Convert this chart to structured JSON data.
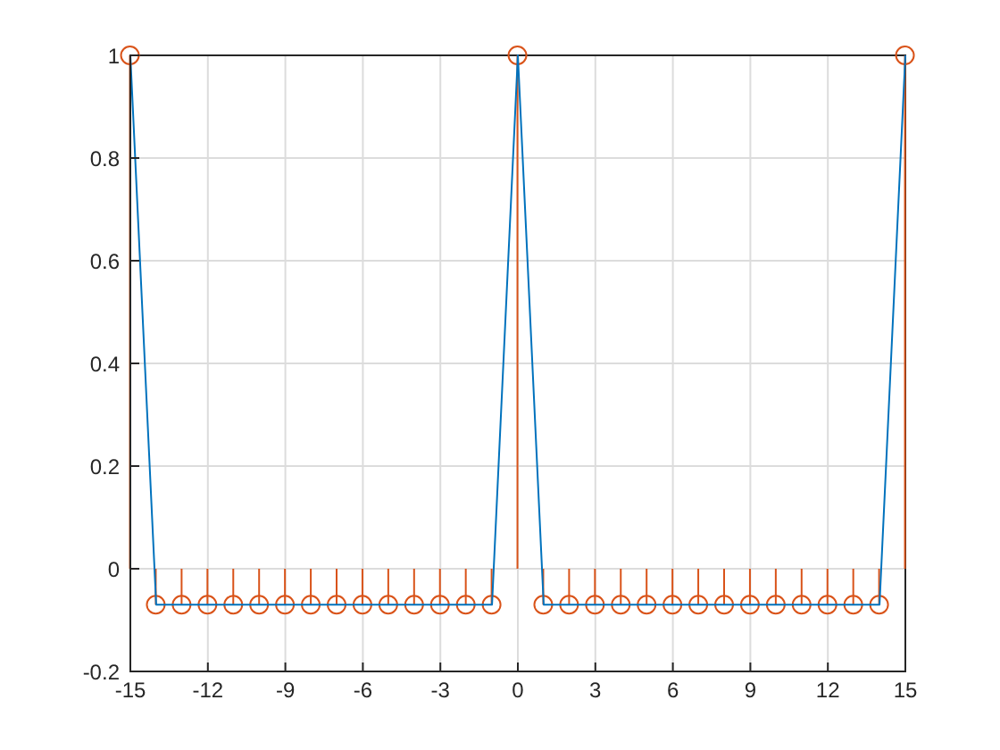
{
  "chart_data": {
    "type": "line",
    "x": [
      -15,
      -14,
      -13,
      -12,
      -11,
      -10,
      -9,
      -8,
      -7,
      -6,
      -5,
      -4,
      -3,
      -2,
      -1,
      0,
      1,
      2,
      3,
      4,
      5,
      6,
      7,
      8,
      9,
      10,
      11,
      12,
      13,
      14,
      15
    ],
    "xlim": [
      -15,
      15
    ],
    "xticks": [
      -15,
      -12,
      -9,
      -6,
      -3,
      0,
      3,
      6,
      9,
      12,
      15
    ],
    "ylim": [
      -0.2,
      1
    ],
    "yticks": [
      -0.2,
      0,
      0.2,
      0.4,
      0.6,
      0.8,
      1
    ],
    "grid": true,
    "series": [
      {
        "color": "#0072bd",
        "marker": "none",
        "values": [
          1,
          -0.07,
          -0.07,
          -0.07,
          -0.07,
          -0.07,
          -0.07,
          -0.07,
          -0.07,
          -0.07,
          -0.07,
          -0.07,
          -0.07,
          -0.07,
          -0.07,
          1,
          -0.07,
          -0.07,
          -0.07,
          -0.07,
          -0.07,
          -0.07,
          -0.07,
          -0.07,
          -0.07,
          -0.07,
          -0.07,
          -0.07,
          -0.07,
          -0.07,
          1
        ]
      },
      {
        "type": "lollipop",
        "color": "#d95319",
        "marker": "circle",
        "values": [
          1,
          -0.07,
          -0.07,
          -0.07,
          -0.07,
          -0.07,
          -0.07,
          -0.07,
          -0.07,
          -0.07,
          -0.07,
          -0.07,
          -0.07,
          -0.07,
          -0.07,
          1,
          -0.07,
          -0.07,
          -0.07,
          -0.07,
          -0.07,
          -0.07,
          -0.07,
          -0.07,
          -0.07,
          -0.07,
          -0.07,
          -0.07,
          -0.07,
          -0.07,
          1
        ]
      }
    ]
  }
}
